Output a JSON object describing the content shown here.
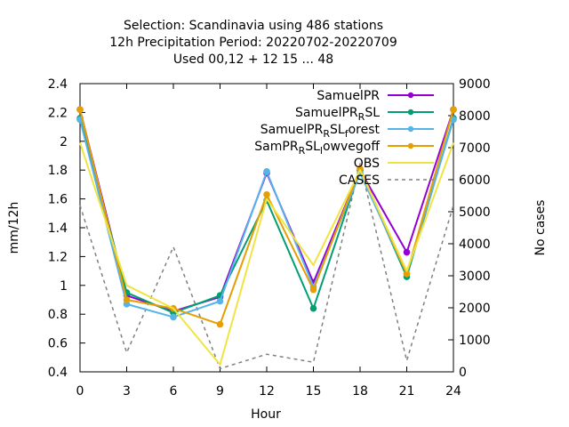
{
  "chart_data": {
    "type": "line",
    "title_lines": [
      "Selection: Scandinavia using   486 stations",
      "12h Precipitation    Period: 20220702-20220709",
      "Used  00,12  + 12 15 ... 48"
    ],
    "xlabel": "Hour",
    "ylabel": "mm/12h",
    "y2label": "No cases",
    "x": [
      0,
      3,
      6,
      9,
      12,
      15,
      18,
      21,
      24
    ],
    "xlim": [
      0,
      24
    ],
    "ylim": [
      0.4,
      2.4
    ],
    "y2lim": [
      0,
      9000
    ],
    "x_ticks": [
      "0",
      "3",
      "6",
      "9",
      "12",
      "15",
      "18",
      "21",
      "24"
    ],
    "y_ticks": [
      "0.4",
      "0.6",
      "0.8",
      "1",
      "1.2",
      "1.4",
      "1.6",
      "1.8",
      "2",
      "2.2",
      "2.4"
    ],
    "y2_ticks": [
      "0",
      "1000",
      "2000",
      "3000",
      "4000",
      "5000",
      "6000",
      "7000",
      "8000",
      "9000"
    ],
    "legend_position": "top-right",
    "series": [
      {
        "legend": [
          "SamuelPR"
        ],
        "color": "#9400d3",
        "marker": "x",
        "axis": "y",
        "values": [
          2.22,
          0.93,
          0.82,
          0.92,
          1.78,
          1.02,
          1.8,
          1.23,
          2.22
        ]
      },
      {
        "legend": [
          "SamuelPR",
          "R",
          "SL"
        ],
        "color": "#009e73",
        "marker": "x",
        "axis": "y",
        "values": [
          2.16,
          0.95,
          0.81,
          0.93,
          1.59,
          0.84,
          1.8,
          1.06,
          2.16
        ]
      },
      {
        "legend": [
          "SamuelPR",
          "R",
          "SL",
          "f",
          "orest"
        ],
        "color": "#56b4e9",
        "marker": "x",
        "axis": "y",
        "values": [
          2.15,
          0.87,
          0.78,
          0.89,
          1.79,
          0.99,
          1.78,
          1.08,
          2.15
        ]
      },
      {
        "legend": [
          "SamPR",
          "R",
          "SL",
          "l",
          "owvegoff"
        ],
        "color": "#e69f00",
        "marker": "x",
        "axis": "y",
        "values": [
          2.22,
          0.9,
          0.84,
          0.73,
          1.63,
          0.97,
          1.81,
          1.08,
          2.22
        ]
      },
      {
        "legend": [
          "OBS"
        ],
        "color": "#f0e442",
        "marker": "none",
        "axis": "y",
        "values": [
          1.99,
          1.0,
          0.84,
          0.45,
          1.6,
          1.14,
          1.8,
          1.1,
          1.99
        ]
      },
      {
        "legend": [
          "CASES"
        ],
        "color": "#808080",
        "marker": "none",
        "dashed": true,
        "axis": "y2",
        "values": [
          5200,
          600,
          3900,
          100,
          550,
          300,
          6500,
          350,
          5200
        ]
      }
    ]
  }
}
